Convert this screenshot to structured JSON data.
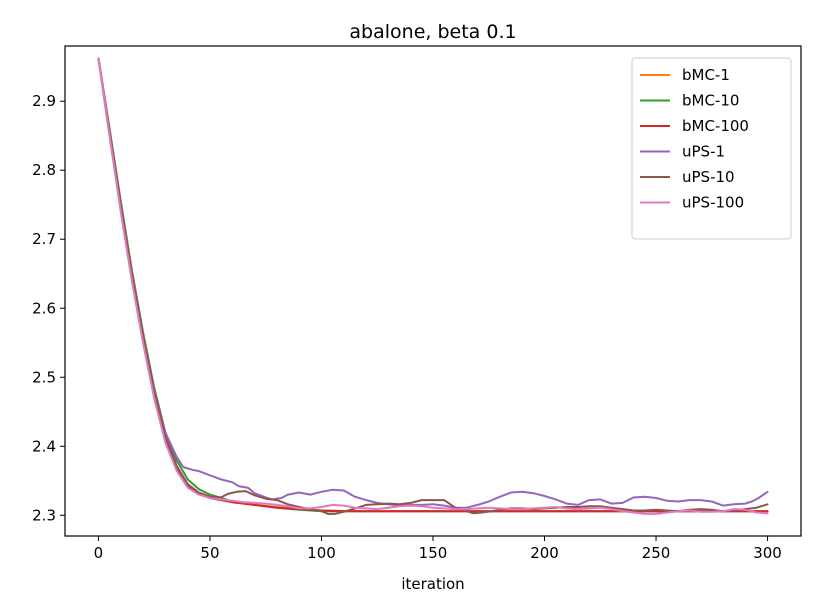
{
  "chart_data": {
    "type": "line",
    "title": "abalone, beta 0.1",
    "xlabel": "iteration",
    "ylabel": "",
    "xlim": [
      -15,
      315
    ],
    "ylim": [
      2.27,
      2.98
    ],
    "xticks": [
      0,
      50,
      100,
      150,
      200,
      250,
      300
    ],
    "yticks": [
      2.3,
      2.4,
      2.5,
      2.6,
      2.7,
      2.8,
      2.9
    ],
    "grid": false,
    "legend_position": "top-right",
    "series": [
      {
        "name": "bMC-1",
        "color": "#ff7f0e",
        "points": [
          [
            0,
            2.962
          ],
          [
            5,
            2.85
          ],
          [
            10,
            2.74
          ],
          [
            15,
            2.64
          ],
          [
            20,
            2.55
          ],
          [
            25,
            2.47
          ],
          [
            30,
            2.41
          ],
          [
            35,
            2.37
          ],
          [
            40,
            2.345
          ],
          [
            45,
            2.332
          ],
          [
            50,
            2.325
          ],
          [
            60,
            2.319
          ],
          [
            70,
            2.315
          ],
          [
            80,
            2.312
          ],
          [
            90,
            2.309
          ],
          [
            100,
            2.307
          ],
          [
            120,
            2.306
          ],
          [
            140,
            2.306
          ],
          [
            160,
            2.306
          ],
          [
            180,
            2.306
          ],
          [
            200,
            2.306
          ],
          [
            220,
            2.306
          ],
          [
            240,
            2.306
          ],
          [
            260,
            2.306
          ],
          [
            280,
            2.306
          ],
          [
            300,
            2.306
          ]
        ]
      },
      {
        "name": "bMC-10",
        "color": "#2ca02c",
        "points": [
          [
            0,
            2.962
          ],
          [
            5,
            2.86
          ],
          [
            10,
            2.755
          ],
          [
            15,
            2.655
          ],
          [
            20,
            2.565
          ],
          [
            25,
            2.485
          ],
          [
            30,
            2.42
          ],
          [
            35,
            2.38
          ],
          [
            40,
            2.352
          ],
          [
            45,
            2.338
          ],
          [
            50,
            2.33
          ],
          [
            55,
            2.325
          ],
          [
            60,
            2.32
          ],
          [
            70,
            2.315
          ],
          [
            80,
            2.311
          ],
          [
            90,
            2.308
          ],
          [
            100,
            2.306
          ],
          [
            110,
            2.306
          ],
          [
            120,
            2.306
          ],
          [
            140,
            2.306
          ],
          [
            160,
            2.306
          ],
          [
            180,
            2.306
          ],
          [
            200,
            2.306
          ],
          [
            220,
            2.306
          ],
          [
            240,
            2.306
          ],
          [
            260,
            2.306
          ],
          [
            280,
            2.306
          ],
          [
            300,
            2.306
          ]
        ]
      },
      {
        "name": "bMC-100",
        "color": "#d62728",
        "points": [
          [
            0,
            2.962
          ],
          [
            5,
            2.85
          ],
          [
            10,
            2.745
          ],
          [
            15,
            2.645
          ],
          [
            20,
            2.555
          ],
          [
            25,
            2.475
          ],
          [
            30,
            2.41
          ],
          [
            35,
            2.368
          ],
          [
            40,
            2.343
          ],
          [
            45,
            2.331
          ],
          [
            50,
            2.325
          ],
          [
            60,
            2.319
          ],
          [
            70,
            2.315
          ],
          [
            80,
            2.311
          ],
          [
            90,
            2.309
          ],
          [
            100,
            2.307
          ],
          [
            110,
            2.306
          ],
          [
            120,
            2.306
          ],
          [
            140,
            2.306
          ],
          [
            160,
            2.306
          ],
          [
            180,
            2.306
          ],
          [
            200,
            2.306
          ],
          [
            220,
            2.306
          ],
          [
            240,
            2.306
          ],
          [
            260,
            2.306
          ],
          [
            280,
            2.306
          ],
          [
            300,
            2.306
          ]
        ]
      },
      {
        "name": "uPS-1",
        "color": "#9467bd",
        "points": [
          [
            0,
            2.962
          ],
          [
            5,
            2.855
          ],
          [
            10,
            2.75
          ],
          [
            15,
            2.65
          ],
          [
            20,
            2.56
          ],
          [
            25,
            2.48
          ],
          [
            30,
            2.42
          ],
          [
            35,
            2.385
          ],
          [
            38,
            2.37
          ],
          [
            42,
            2.366
          ],
          [
            45,
            2.364
          ],
          [
            50,
            2.358
          ],
          [
            55,
            2.352
          ],
          [
            60,
            2.348
          ],
          [
            63,
            2.342
          ],
          [
            67,
            2.34
          ],
          [
            70,
            2.332
          ],
          [
            75,
            2.326
          ],
          [
            78,
            2.323
          ],
          [
            82,
            2.325
          ],
          [
            85,
            2.33
          ],
          [
            90,
            2.333
          ],
          [
            95,
            2.33
          ],
          [
            100,
            2.334
          ],
          [
            105,
            2.337
          ],
          [
            110,
            2.336
          ],
          [
            115,
            2.327
          ],
          [
            120,
            2.322
          ],
          [
            125,
            2.318
          ],
          [
            130,
            2.316
          ],
          [
            135,
            2.314
          ],
          [
            140,
            2.315
          ],
          [
            145,
            2.315
          ],
          [
            150,
            2.316
          ],
          [
            155,
            2.314
          ],
          [
            160,
            2.311
          ],
          [
            165,
            2.311
          ],
          [
            170,
            2.315
          ],
          [
            175,
            2.32
          ],
          [
            180,
            2.327
          ],
          [
            185,
            2.333
          ],
          [
            190,
            2.334
          ],
          [
            195,
            2.332
          ],
          [
            200,
            2.328
          ],
          [
            205,
            2.323
          ],
          [
            210,
            2.317
          ],
          [
            215,
            2.315
          ],
          [
            220,
            2.322
          ],
          [
            225,
            2.323
          ],
          [
            230,
            2.317
          ],
          [
            235,
            2.318
          ],
          [
            240,
            2.326
          ],
          [
            245,
            2.327
          ],
          [
            250,
            2.325
          ],
          [
            255,
            2.321
          ],
          [
            260,
            2.32
          ],
          [
            265,
            2.322
          ],
          [
            270,
            2.322
          ],
          [
            275,
            2.32
          ],
          [
            280,
            2.314
          ],
          [
            285,
            2.316
          ],
          [
            290,
            2.317
          ],
          [
            293,
            2.32
          ],
          [
            296,
            2.325
          ],
          [
            300,
            2.334
          ]
        ]
      },
      {
        "name": "uPS-10",
        "color": "#8c564b",
        "points": [
          [
            0,
            2.962
          ],
          [
            5,
            2.855
          ],
          [
            10,
            2.75
          ],
          [
            15,
            2.65
          ],
          [
            20,
            2.56
          ],
          [
            25,
            2.48
          ],
          [
            30,
            2.415
          ],
          [
            35,
            2.372
          ],
          [
            40,
            2.345
          ],
          [
            45,
            2.333
          ],
          [
            50,
            2.327
          ],
          [
            55,
            2.326
          ],
          [
            58,
            2.331
          ],
          [
            62,
            2.334
          ],
          [
            66,
            2.335
          ],
          [
            70,
            2.329
          ],
          [
            75,
            2.324
          ],
          [
            80,
            2.322
          ],
          [
            85,
            2.316
          ],
          [
            90,
            2.312
          ],
          [
            95,
            2.309
          ],
          [
            100,
            2.306
          ],
          [
            103,
            2.302
          ],
          [
            106,
            2.302
          ],
          [
            110,
            2.305
          ],
          [
            115,
            2.31
          ],
          [
            120,
            2.315
          ],
          [
            125,
            2.316
          ],
          [
            130,
            2.317
          ],
          [
            135,
            2.316
          ],
          [
            140,
            2.318
          ],
          [
            145,
            2.322
          ],
          [
            150,
            2.322
          ],
          [
            155,
            2.322
          ],
          [
            160,
            2.311
          ],
          [
            165,
            2.306
          ],
          [
            168,
            2.303
          ],
          [
            172,
            2.304
          ],
          [
            176,
            2.306
          ],
          [
            180,
            2.308
          ],
          [
            185,
            2.31
          ],
          [
            190,
            2.31
          ],
          [
            195,
            2.309
          ],
          [
            200,
            2.31
          ],
          [
            205,
            2.311
          ],
          [
            210,
            2.312
          ],
          [
            215,
            2.312
          ],
          [
            220,
            2.313
          ],
          [
            225,
            2.313
          ],
          [
            230,
            2.311
          ],
          [
            235,
            2.309
          ],
          [
            240,
            2.307
          ],
          [
            245,
            2.307
          ],
          [
            250,
            2.308
          ],
          [
            255,
            2.307
          ],
          [
            260,
            2.306
          ],
          [
            265,
            2.308
          ],
          [
            270,
            2.309
          ],
          [
            275,
            2.308
          ],
          [
            280,
            2.306
          ],
          [
            285,
            2.307
          ],
          [
            290,
            2.309
          ],
          [
            295,
            2.311
          ],
          [
            300,
            2.316
          ]
        ]
      },
      {
        "name": "uPS-100",
        "color": "#e377c2",
        "points": [
          [
            0,
            2.962
          ],
          [
            5,
            2.85
          ],
          [
            10,
            2.74
          ],
          [
            15,
            2.64
          ],
          [
            20,
            2.55
          ],
          [
            25,
            2.47
          ],
          [
            30,
            2.405
          ],
          [
            35,
            2.365
          ],
          [
            40,
            2.34
          ],
          [
            45,
            2.33
          ],
          [
            50,
            2.325
          ],
          [
            55,
            2.323
          ],
          [
            60,
            2.321
          ],
          [
            65,
            2.319
          ],
          [
            70,
            2.318
          ],
          [
            75,
            2.317
          ],
          [
            80,
            2.315
          ],
          [
            85,
            2.313
          ],
          [
            90,
            2.31
          ],
          [
            95,
            2.31
          ],
          [
            100,
            2.312
          ],
          [
            105,
            2.315
          ],
          [
            110,
            2.314
          ],
          [
            115,
            2.311
          ],
          [
            120,
            2.31
          ],
          [
            125,
            2.309
          ],
          [
            130,
            2.311
          ],
          [
            135,
            2.313
          ],
          [
            140,
            2.314
          ],
          [
            145,
            2.313
          ],
          [
            150,
            2.311
          ],
          [
            155,
            2.31
          ],
          [
            160,
            2.309
          ],
          [
            165,
            2.309
          ],
          [
            170,
            2.31
          ],
          [
            175,
            2.311
          ],
          [
            180,
            2.31
          ],
          [
            185,
            2.309
          ],
          [
            190,
            2.309
          ],
          [
            195,
            2.31
          ],
          [
            200,
            2.311
          ],
          [
            205,
            2.312
          ],
          [
            210,
            2.31
          ],
          [
            215,
            2.309
          ],
          [
            220,
            2.31
          ],
          [
            225,
            2.311
          ],
          [
            230,
            2.309
          ],
          [
            235,
            2.306
          ],
          [
            240,
            2.304
          ],
          [
            245,
            2.302
          ],
          [
            250,
            2.302
          ],
          [
            255,
            2.304
          ],
          [
            260,
            2.306
          ],
          [
            265,
            2.307
          ],
          [
            270,
            2.305
          ],
          [
            275,
            2.305
          ],
          [
            280,
            2.306
          ],
          [
            285,
            2.309
          ],
          [
            290,
            2.308
          ],
          [
            295,
            2.304
          ],
          [
            300,
            2.303
          ]
        ]
      }
    ]
  }
}
